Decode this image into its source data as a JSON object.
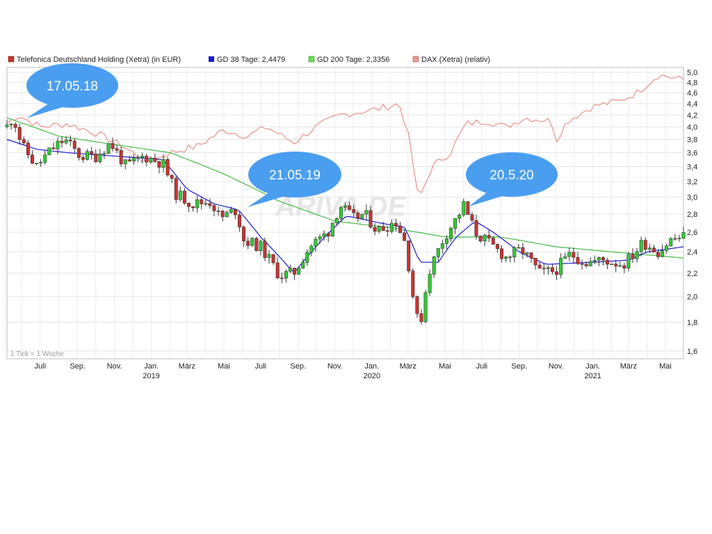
{
  "chart_data": {
    "type": "candlestick",
    "scale": "log",
    "ylim": [
      1.55,
      5.1
    ],
    "y_ticks": [
      "1,6",
      "1,8",
      "2,0",
      "2,2",
      "2,4",
      "2,6",
      "2,8",
      "3,0",
      "3,2",
      "3,4",
      "3,6",
      "3,8",
      "4,0",
      "4,2",
      "4,4",
      "4,6",
      "4,8",
      "5,0"
    ],
    "x_month_ticks": [
      "Juli",
      "Sep.",
      "Nov.",
      "Jan.",
      "März",
      "Mai",
      "Juli",
      "Sep.",
      "Nov.",
      "Jan.",
      "März",
      "Mai",
      "Juli",
      "Sep.",
      "Nov.",
      "Jan.",
      "März",
      "Mai"
    ],
    "x_year_ticks": [
      "2019",
      "2020",
      "2021"
    ],
    "x_range": [
      "2018-05-07",
      "2021-05-31"
    ],
    "grid": true,
    "legend": {
      "placement": "top-left",
      "items": [
        {
          "label": "Telefonica Deutschland Holding (Xetra) (in EUR)",
          "color": "#c0392b"
        },
        {
          "label": "GD 38 Tage: 2,4479",
          "color": "#1a1acc"
        },
        {
          "label": "GD 200 Tage: 2,3356",
          "color": "#44bb44"
        },
        {
          "label": "DAX (Xetra) (relativ)",
          "color": "#e8908a"
        }
      ]
    },
    "tick_note": "1 Tick = 1 Woche",
    "watermark": "ARIVA.DE",
    "annotations": [
      {
        "text": "17.05.18",
        "date": "2018-05-17"
      },
      {
        "text": "21.05.19",
        "date": "2019-05-21"
      },
      {
        "text": "20.5.20",
        "date": "2020-05-20"
      }
    ],
    "series": [
      {
        "name": "Telefonica Deutschland Holding (Xetra) (in EUR)",
        "color_up": "#33cc33",
        "color_down": "#cc3333",
        "keypoints": [
          {
            "date": "2018-05-07",
            "close": 4.0
          },
          {
            "date": "2018-05-17",
            "close": 4.18
          },
          {
            "date": "2018-06-01",
            "close": 3.7
          },
          {
            "date": "2018-06-25",
            "close": 3.4
          },
          {
            "date": "2018-07-20",
            "close": 3.65
          },
          {
            "date": "2018-08-10",
            "close": 3.8
          },
          {
            "date": "2018-09-05",
            "close": 3.55
          },
          {
            "date": "2018-10-01",
            "close": 3.55
          },
          {
            "date": "2018-10-25",
            "close": 3.75
          },
          {
            "date": "2018-11-20",
            "close": 3.4
          },
          {
            "date": "2018-12-20",
            "close": 3.55
          },
          {
            "date": "2019-01-20",
            "close": 3.45
          },
          {
            "date": "2019-02-10",
            "close": 3.05
          },
          {
            "date": "2019-03-10",
            "close": 2.92
          },
          {
            "date": "2019-04-10",
            "close": 2.95
          },
          {
            "date": "2019-04-25",
            "close": 2.75
          },
          {
            "date": "2019-05-21",
            "close": 2.85
          },
          {
            "date": "2019-06-03",
            "close": 2.52
          },
          {
            "date": "2019-07-01",
            "close": 2.45
          },
          {
            "date": "2019-08-01",
            "close": 2.18
          },
          {
            "date": "2019-08-25",
            "close": 2.2
          },
          {
            "date": "2019-09-20",
            "close": 2.45
          },
          {
            "date": "2019-10-20",
            "close": 2.6
          },
          {
            "date": "2019-11-10",
            "close": 2.9
          },
          {
            "date": "2019-12-01",
            "close": 2.75
          },
          {
            "date": "2019-12-20",
            "close": 2.8
          },
          {
            "date": "2020-01-10",
            "close": 2.62
          },
          {
            "date": "2020-02-10",
            "close": 2.72
          },
          {
            "date": "2020-02-25",
            "close": 2.5
          },
          {
            "date": "2020-03-12",
            "close": 1.9
          },
          {
            "date": "2020-03-20",
            "close": 1.75
          },
          {
            "date": "2020-04-05",
            "close": 2.22
          },
          {
            "date": "2020-04-30",
            "close": 2.55
          },
          {
            "date": "2020-05-20",
            "close": 2.75
          },
          {
            "date": "2020-06-01",
            "close": 2.9
          },
          {
            "date": "2020-06-20",
            "close": 2.6
          },
          {
            "date": "2020-07-20",
            "close": 2.45
          },
          {
            "date": "2020-08-10",
            "close": 2.35
          },
          {
            "date": "2020-09-05",
            "close": 2.42
          },
          {
            "date": "2020-10-05",
            "close": 2.2
          },
          {
            "date": "2020-10-30",
            "close": 2.22
          },
          {
            "date": "2020-11-25",
            "close": 2.38
          },
          {
            "date": "2020-12-20",
            "close": 2.3
          },
          {
            "date": "2021-01-20",
            "close": 2.32
          },
          {
            "date": "2021-02-20",
            "close": 2.28
          },
          {
            "date": "2021-03-10",
            "close": 2.38
          },
          {
            "date": "2021-03-25",
            "close": 2.5
          },
          {
            "date": "2021-04-20",
            "close": 2.4
          },
          {
            "date": "2021-05-10",
            "close": 2.52
          },
          {
            "date": "2021-05-28",
            "close": 2.55
          }
        ]
      },
      {
        "name": "GD 38 Tage: 2,4479",
        "color": "#1a1acc",
        "keypoints": [
          {
            "date": "2018-05-07",
            "value": 3.8
          },
          {
            "date": "2018-06-25",
            "value": 3.65
          },
          {
            "date": "2018-08-15",
            "value": 3.6
          },
          {
            "date": "2018-11-01",
            "value": 3.55
          },
          {
            "date": "2019-01-20",
            "value": 3.5
          },
          {
            "date": "2019-03-01",
            "value": 3.1
          },
          {
            "date": "2019-04-15",
            "value": 2.92
          },
          {
            "date": "2019-05-25",
            "value": 2.85
          },
          {
            "date": "2019-07-01",
            "value": 2.55
          },
          {
            "date": "2019-08-25",
            "value": 2.2
          },
          {
            "date": "2019-10-15",
            "value": 2.55
          },
          {
            "date": "2019-11-20",
            "value": 2.78
          },
          {
            "date": "2020-01-15",
            "value": 2.7
          },
          {
            "date": "2020-02-25",
            "value": 2.65
          },
          {
            "date": "2020-03-20",
            "value": 2.3
          },
          {
            "date": "2020-04-20",
            "value": 2.3
          },
          {
            "date": "2020-05-20",
            "value": 2.55
          },
          {
            "date": "2020-06-20",
            "value": 2.72
          },
          {
            "date": "2020-07-20",
            "value": 2.6
          },
          {
            "date": "2020-09-01",
            "value": 2.4
          },
          {
            "date": "2020-10-15",
            "value": 2.28
          },
          {
            "date": "2021-01-01",
            "value": 2.3
          },
          {
            "date": "2021-03-01",
            "value": 2.32
          },
          {
            "date": "2021-04-01",
            "value": 2.4
          },
          {
            "date": "2021-05-31",
            "value": 2.45
          }
        ]
      },
      {
        "name": "GD 200 Tage: 2,3356",
        "color": "#44bb44",
        "keypoints": [
          {
            "date": "2018-05-07",
            "value": 4.15
          },
          {
            "date": "2018-08-01",
            "value": 3.85
          },
          {
            "date": "2018-11-01",
            "value": 3.72
          },
          {
            "date": "2019-02-01",
            "value": 3.6
          },
          {
            "date": "2019-05-01",
            "value": 3.3
          },
          {
            "date": "2019-08-01",
            "value": 2.95
          },
          {
            "date": "2019-11-01",
            "value": 2.72
          },
          {
            "date": "2020-02-01",
            "value": 2.65
          },
          {
            "date": "2020-05-01",
            "value": 2.55
          },
          {
            "date": "2020-08-01",
            "value": 2.55
          },
          {
            "date": "2020-11-01",
            "value": 2.45
          },
          {
            "date": "2021-02-01",
            "value": 2.4
          },
          {
            "date": "2021-05-31",
            "value": 2.34
          }
        ]
      },
      {
        "name": "DAX (Xetra) (relativ)",
        "color": "#e8908a",
        "keypoints": [
          {
            "date": "2018-05-07",
            "value": 4.05
          },
          {
            "date": "2018-05-25",
            "value": 4.2
          },
          {
            "date": "2018-07-01",
            "value": 4.0
          },
          {
            "date": "2018-08-15",
            "value": 4.05
          },
          {
            "date": "2018-10-01",
            "value": 3.9
          },
          {
            "date": "2018-11-15",
            "value": 3.7
          },
          {
            "date": "2018-12-25",
            "value": 3.45
          },
          {
            "date": "2019-02-01",
            "value": 3.6
          },
          {
            "date": "2019-03-20",
            "value": 3.7
          },
          {
            "date": "2019-05-01",
            "value": 3.95
          },
          {
            "date": "2019-06-10",
            "value": 3.85
          },
          {
            "date": "2019-07-10",
            "value": 4.0
          },
          {
            "date": "2019-08-25",
            "value": 3.75
          },
          {
            "date": "2019-10-01",
            "value": 4.0
          },
          {
            "date": "2019-11-10",
            "value": 4.2
          },
          {
            "date": "2020-01-10",
            "value": 4.3
          },
          {
            "date": "2020-02-15",
            "value": 4.4
          },
          {
            "date": "2020-03-01",
            "value": 3.9
          },
          {
            "date": "2020-03-18",
            "value": 2.95
          },
          {
            "date": "2020-04-10",
            "value": 3.4
          },
          {
            "date": "2020-05-10",
            "value": 3.6
          },
          {
            "date": "2020-06-05",
            "value": 4.05
          },
          {
            "date": "2020-07-10",
            "value": 4.1
          },
          {
            "date": "2020-08-10",
            "value": 4.0
          },
          {
            "date": "2020-09-10",
            "value": 4.15
          },
          {
            "date": "2020-10-25",
            "value": 4.1
          },
          {
            "date": "2020-10-30",
            "value": 3.75
          },
          {
            "date": "2020-11-20",
            "value": 4.1
          },
          {
            "date": "2021-01-01",
            "value": 4.35
          },
          {
            "date": "2021-02-15",
            "value": 4.45
          },
          {
            "date": "2021-03-15",
            "value": 4.6
          },
          {
            "date": "2021-04-20",
            "value": 4.95
          },
          {
            "date": "2021-05-31",
            "value": 4.85
          }
        ]
      }
    ]
  }
}
